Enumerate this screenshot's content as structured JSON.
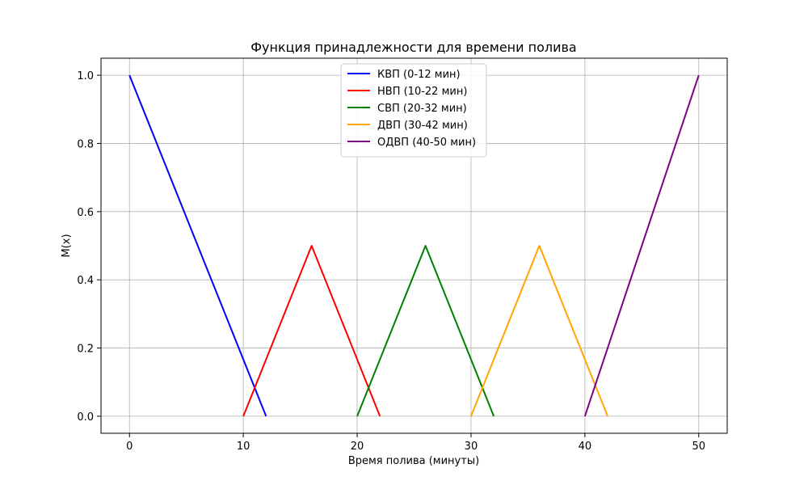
{
  "chart_data": {
    "type": "line",
    "title": "Функция принадлежности для времени полива",
    "xlabel": "Время полива (минуты)",
    "ylabel": "M(x)",
    "xlim": [
      -2.5,
      52.5
    ],
    "ylim": [
      -0.05,
      1.05
    ],
    "xticks": [
      0,
      10,
      20,
      30,
      40,
      50
    ],
    "xtick_labels": [
      "0",
      "10",
      "20",
      "30",
      "40",
      "50"
    ],
    "yticks": [
      0.0,
      0.2,
      0.4,
      0.6,
      0.8,
      1.0
    ],
    "ytick_labels": [
      "0.0",
      "0.2",
      "0.4",
      "0.6",
      "0.8",
      "1.0"
    ],
    "grid": true,
    "legend_position": "top-center",
    "series": [
      {
        "name": "КВП (0-12 мин)",
        "color": "#0000ff",
        "x": [
          0,
          12
        ],
        "y": [
          1.0,
          0.0
        ]
      },
      {
        "name": "НВП (10-22 мин)",
        "color": "#ff0000",
        "x": [
          10,
          16,
          22
        ],
        "y": [
          0.0,
          0.5,
          0.0
        ]
      },
      {
        "name": "СВП (20-32 мин)",
        "color": "#008000",
        "x": [
          20,
          26,
          32
        ],
        "y": [
          0.0,
          0.5,
          0.0
        ]
      },
      {
        "name": "ДВП (30-42 мин)",
        "color": "#ffa500",
        "x": [
          30,
          36,
          42
        ],
        "y": [
          0.0,
          0.5,
          0.0
        ]
      },
      {
        "name": "ОДВП (40-50 мин)",
        "color": "#800080",
        "x": [
          40,
          50
        ],
        "y": [
          0.0,
          1.0
        ]
      }
    ]
  }
}
